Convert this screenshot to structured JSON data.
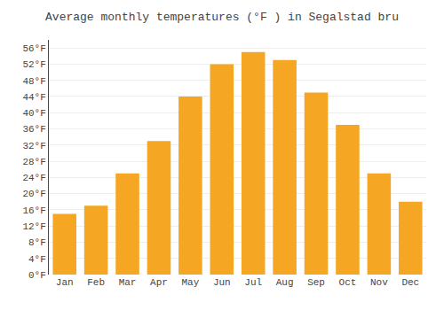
{
  "chart_data": {
    "type": "bar",
    "title": "Average monthly temperatures (°F ) in Segalstad bru",
    "categories": [
      "Jan",
      "Feb",
      "Mar",
      "Apr",
      "May",
      "Jun",
      "Jul",
      "Aug",
      "Sep",
      "Oct",
      "Nov",
      "Dec"
    ],
    "values": [
      15,
      17,
      25,
      33,
      44,
      52,
      55,
      53,
      45,
      37,
      25,
      18
    ],
    "color": "#F5A623",
    "ylim": [
      0,
      58
    ],
    "yticks": [
      {
        "value": 0,
        "label": "0°F"
      },
      {
        "value": 4,
        "label": "4°F"
      },
      {
        "value": 8,
        "label": "8°F"
      },
      {
        "value": 12,
        "label": "12°F"
      },
      {
        "value": 16,
        "label": "16°F"
      },
      {
        "value": 20,
        "label": "20°F"
      },
      {
        "value": 24,
        "label": "24°F"
      },
      {
        "value": 28,
        "label": "28°F"
      },
      {
        "value": 32,
        "label": "32°F"
      },
      {
        "value": 36,
        "label": "36°F"
      },
      {
        "value": 40,
        "label": "40°F"
      },
      {
        "value": 44,
        "label": "44°F"
      },
      {
        "value": 48,
        "label": "48°F"
      },
      {
        "value": 52,
        "label": "52°F"
      },
      {
        "value": 56,
        "label": "56°F"
      }
    ],
    "grid": true
  }
}
